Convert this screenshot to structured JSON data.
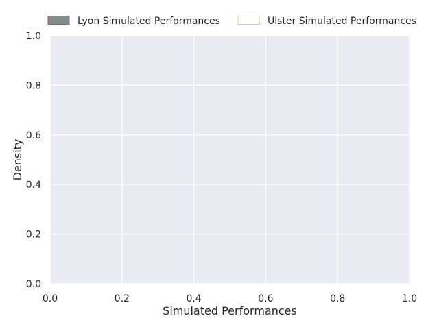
{
  "chart_data": {
    "type": "area",
    "title": "",
    "xlabel": "Simulated Performances",
    "ylabel": "Density",
    "xlim": [
      0.0,
      1.0
    ],
    "ylim": [
      0.0,
      1.0
    ],
    "xticks": [
      "0.0",
      "0.2",
      "0.4",
      "0.6",
      "0.8",
      "1.0"
    ],
    "yticks": [
      "0.0",
      "0.2",
      "0.4",
      "0.6",
      "0.8",
      "1.0"
    ],
    "grid": true,
    "legend_position": "top, outside plot",
    "series": [
      {
        "name": "Lyon Simulated Performances",
        "values": [],
        "fill": "#808b8b",
        "edge": "#c44e52"
      },
      {
        "name": "Ulster Simulated Performances",
        "values": [],
        "fill": "#ffffff",
        "edge": "#e8c77a"
      }
    ],
    "colors": {
      "plot_background": "#eaeaf2",
      "grid": "#ffffff",
      "text": "#262626"
    }
  }
}
